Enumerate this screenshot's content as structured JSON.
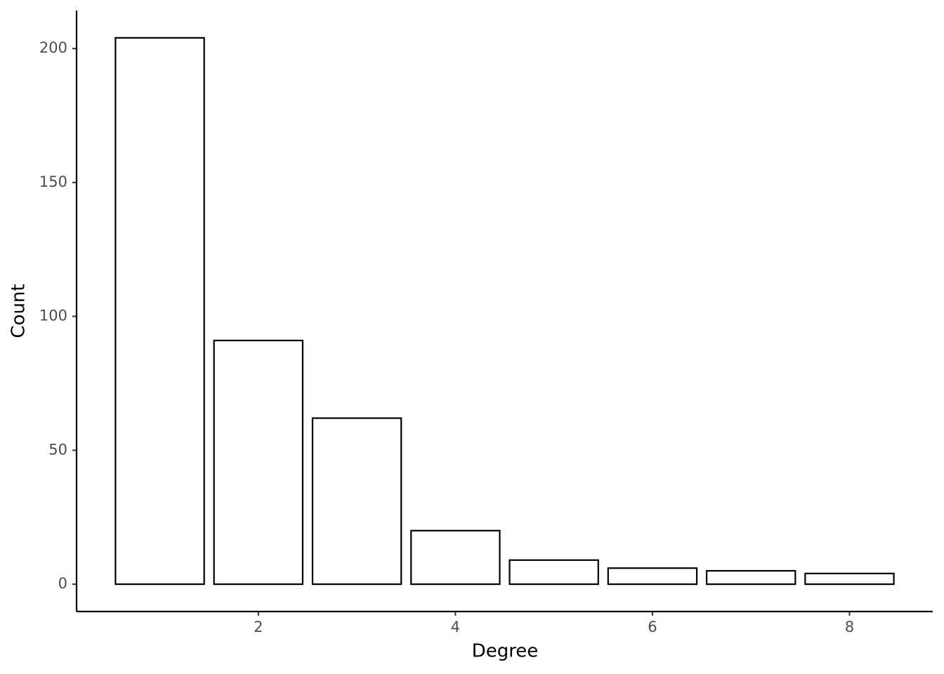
{
  "chart_data": {
    "type": "bar",
    "x_label": "Degree",
    "y_label": "Count",
    "x": [
      1,
      2,
      3,
      4,
      5,
      6,
      7,
      8
    ],
    "values": [
      204,
      91,
      62,
      20,
      9,
      6,
      5,
      4
    ],
    "color": "#ffffff",
    "edge_color": "#000000",
    "xlim": [
      0.155,
      8.845
    ],
    "xticks": [
      2,
      4,
      6,
      8
    ],
    "ylim": [
      -10.2,
      214.2
    ],
    "yticks": [
      0,
      50,
      100,
      150,
      200
    ],
    "grid": false
  }
}
